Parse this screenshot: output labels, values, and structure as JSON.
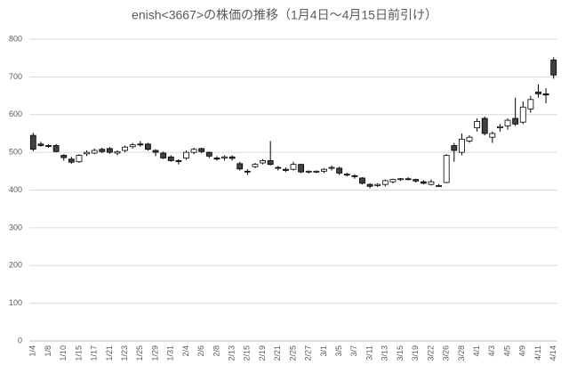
{
  "chart_data": {
    "type": "candlestick",
    "title": "enish<3667>の株価の推移（1月4日～4月15日前引け）",
    "categories": [
      "1/4",
      null,
      "1/8",
      null,
      "1/10",
      null,
      "1/15",
      null,
      "1/17",
      null,
      "1/21",
      null,
      "1/23",
      null,
      "1/25",
      null,
      "1/29",
      null,
      "1/31",
      null,
      "2/4",
      null,
      "2/6",
      null,
      "2/8",
      null,
      "2/13",
      null,
      "2/15",
      null,
      "2/19",
      null,
      "2/21",
      null,
      "2/25",
      null,
      "2/27",
      null,
      "3/1",
      null,
      "3/5",
      null,
      "3/7",
      null,
      "3/11",
      null,
      "3/13",
      null,
      "3/15",
      null,
      "3/19",
      null,
      "3/22",
      null,
      "3/26",
      null,
      "3/28",
      null,
      "4/1",
      null,
      "4/3",
      null,
      "4/5",
      null,
      "4/9",
      null,
      "4/11",
      null,
      "4/14"
    ],
    "open": [
      545,
      522,
      518,
      518,
      492,
      482,
      475,
      496,
      498,
      508,
      510,
      498,
      505,
      515,
      522,
      522,
      505,
      498,
      488,
      478,
      485,
      500,
      510,
      500,
      485,
      485,
      488,
      470,
      450,
      462,
      472,
      478,
      460,
      455,
      455,
      468,
      448,
      448,
      450,
      458,
      458,
      442,
      438,
      432,
      415,
      412,
      415,
      422,
      428,
      430,
      428,
      422,
      415,
      412,
      420,
      518,
      500,
      530,
      565,
      590,
      540,
      565,
      570,
      590,
      580,
      615,
      660,
      655,
      745
    ],
    "high": [
      552,
      528,
      522,
      522,
      495,
      488,
      495,
      505,
      510,
      512,
      514,
      505,
      518,
      525,
      530,
      525,
      508,
      502,
      492,
      482,
      505,
      512,
      512,
      502,
      490,
      492,
      492,
      475,
      455,
      472,
      482,
      530,
      464,
      460,
      475,
      470,
      452,
      452,
      458,
      465,
      462,
      446,
      442,
      434,
      418,
      418,
      428,
      430,
      432,
      434,
      430,
      426,
      428,
      416,
      495,
      525,
      550,
      545,
      590,
      595,
      555,
      575,
      590,
      645,
      635,
      650,
      680,
      670,
      752
    ],
    "low": [
      503,
      515,
      512,
      500,
      478,
      470,
      472,
      490,
      495,
      498,
      496,
      492,
      500,
      510,
      515,
      505,
      490,
      482,
      475,
      468,
      480,
      495,
      498,
      485,
      478,
      478,
      478,
      452,
      440,
      458,
      468,
      465,
      452,
      448,
      452,
      445,
      444,
      445,
      445,
      452,
      440,
      436,
      430,
      415,
      405,
      408,
      410,
      418,
      424,
      426,
      420,
      415,
      412,
      408,
      418,
      475,
      492,
      525,
      555,
      545,
      525,
      555,
      560,
      570,
      575,
      605,
      645,
      630,
      695
    ],
    "close": [
      508,
      518,
      516,
      502,
      486,
      474,
      492,
      500,
      505,
      502,
      500,
      502,
      514,
      520,
      520,
      508,
      500,
      485,
      478,
      476,
      500,
      508,
      502,
      490,
      482,
      488,
      484,
      456,
      448,
      468,
      478,
      468,
      458,
      452,
      468,
      448,
      450,
      450,
      455,
      460,
      445,
      440,
      436,
      418,
      410,
      415,
      425,
      428,
      430,
      428,
      424,
      418,
      422,
      412,
      492,
      505,
      535,
      540,
      582,
      550,
      550,
      568,
      585,
      575,
      620,
      640,
      655,
      652,
      705
    ],
    "up_color": "#ffffff",
    "down_color": "#404040",
    "ylim": [
      0,
      800
    ],
    "yticks": [
      0,
      100,
      200,
      300,
      400,
      500,
      600,
      700,
      800
    ],
    "grid": true
  }
}
